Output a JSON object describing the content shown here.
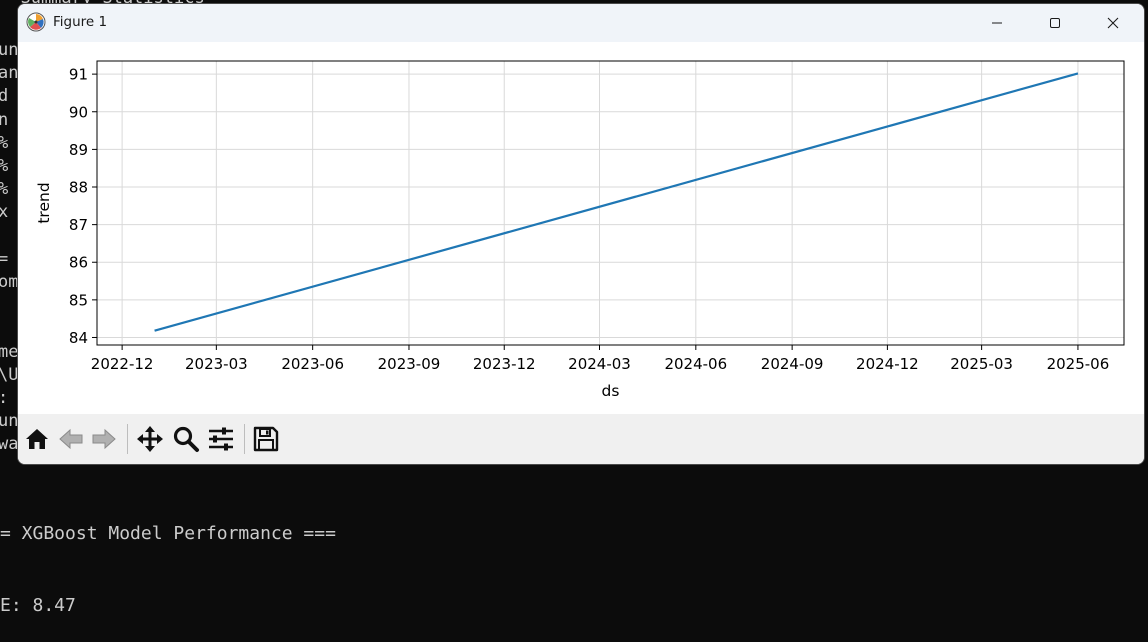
{
  "terminal": {
    "top_line": "= Summary Statistics ===",
    "left_fragments": [
      "un",
      "an",
      "d",
      "n",
      "%",
      "%",
      "%",
      "x",
      "",
      "=",
      "om",
      "",
      "",
      "me",
      "\\U",
      ":",
      "un",
      "wa"
    ],
    "bottom_line": "= XGBoost Model Performance ===",
    "bottom_line2": "E: 8.47"
  },
  "window": {
    "title": "Figure 1"
  },
  "chart_data": {
    "type": "line",
    "xlabel": "ds",
    "ylabel": "trend",
    "x_ticks": [
      "2022-12",
      "2023-03",
      "2023-06",
      "2023-09",
      "2023-12",
      "2024-03",
      "2024-06",
      "2024-09",
      "2024-12",
      "2025-03",
      "2025-06"
    ],
    "y_ticks": [
      84,
      85,
      86,
      87,
      88,
      89,
      90,
      91
    ],
    "xlim": [
      "2022-11-07",
      "2025-07-15"
    ],
    "ylim": [
      83.8,
      91.35
    ],
    "grid": true,
    "series": [
      {
        "color": "#1f77b4",
        "x": [
          "2023-01-01",
          "2025-06-01"
        ],
        "y": [
          84.18,
          91.02
        ]
      }
    ]
  },
  "toolbar": {
    "items": [
      "home-icon",
      "back-icon",
      "forward-icon",
      "pan-icon",
      "zoom-icon",
      "configure-subplots-icon",
      "save-icon"
    ]
  }
}
